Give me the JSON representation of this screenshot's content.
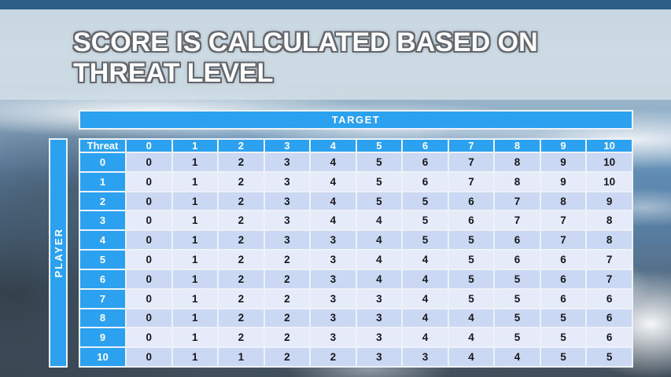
{
  "slide": {
    "title_lines": [
      "SCORE IS CALCULATED BASED ON",
      "THREAT LEVEL"
    ]
  },
  "chart_data": {
    "type": "table",
    "title": "SCORE IS CALCULATED BASED ON THREAT LEVEL",
    "x_axis_label": "TARGET",
    "y_axis_label": "PLAYER",
    "corner_header": "Threat",
    "columns": [
      "0",
      "1",
      "2",
      "3",
      "4",
      "5",
      "6",
      "7",
      "8",
      "9",
      "10"
    ],
    "row_headers": [
      "0",
      "1",
      "2",
      "3",
      "4",
      "5",
      "6",
      "7",
      "8",
      "9",
      "10"
    ],
    "matrix": [
      [
        0,
        1,
        2,
        3,
        4,
        5,
        6,
        7,
        8,
        9,
        10
      ],
      [
        0,
        1,
        2,
        3,
        4,
        5,
        6,
        7,
        8,
        9,
        10
      ],
      [
        0,
        1,
        2,
        3,
        4,
        5,
        5,
        6,
        7,
        8,
        9
      ],
      [
        0,
        1,
        2,
        3,
        4,
        4,
        5,
        6,
        7,
        7,
        8
      ],
      [
        0,
        1,
        2,
        3,
        3,
        4,
        5,
        5,
        6,
        7,
        8
      ],
      [
        0,
        1,
        2,
        2,
        3,
        4,
        4,
        5,
        6,
        6,
        7
      ],
      [
        0,
        1,
        2,
        2,
        3,
        4,
        4,
        5,
        5,
        6,
        7
      ],
      [
        0,
        1,
        2,
        2,
        3,
        3,
        4,
        5,
        5,
        6,
        6
      ],
      [
        0,
        1,
        2,
        2,
        3,
        3,
        4,
        4,
        5,
        5,
        6
      ],
      [
        0,
        1,
        2,
        2,
        3,
        3,
        4,
        4,
        5,
        5,
        6
      ],
      [
        0,
        1,
        1,
        2,
        2,
        3,
        3,
        4,
        4,
        5,
        5
      ]
    ]
  },
  "colors": {
    "accent_blue": "#2BA1EF",
    "row_dark": "#CBD8F4",
    "row_light": "#E6EBFA",
    "top_strip": "#2D5E88",
    "table_grid": "#EDF2F9",
    "cell_text": "#17181B",
    "title_text": "#FFFFFF",
    "title_outline": "#63676C",
    "band_bg": "rgba(212,223,232,0.85)"
  }
}
